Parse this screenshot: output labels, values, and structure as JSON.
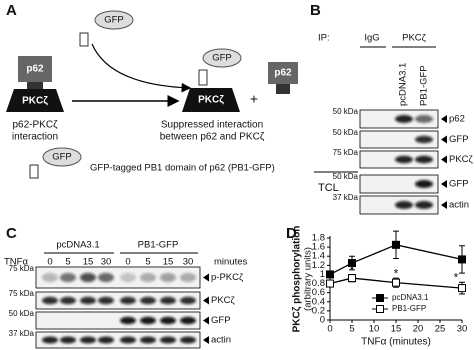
{
  "panel_a": {
    "label": "A",
    "gfp_top": "GFP",
    "p62_left": "p62",
    "pkc_left": "PKCζ",
    "caption_left": [
      "p62-PKCζ",
      "interaction"
    ],
    "gfp_right": "GFP",
    "pkc_right": "PKCζ",
    "plus": "+",
    "p62_right": "p62",
    "caption_right": [
      "Suppressed interaction",
      "between p62 and PKCζ"
    ],
    "legend_gfp": "GFP",
    "legend_text": "GFP-tagged PB1 domain of p62 (PB1-GFP)"
  },
  "panel_b": {
    "label": "B",
    "ip": "IP:",
    "igg": "IgG",
    "pkc": "PKCζ",
    "lanes": [
      "pcDNA3.1",
      "PB1-GFP"
    ],
    "markers": [
      "50 kDa",
      "50 kDa",
      "75 kDa",
      "50 kDa",
      "37 kDa"
    ],
    "blots": [
      "p62",
      "GFP",
      "PKCζ",
      "GFP",
      "actin"
    ],
    "tcl": "TCL"
  },
  "panel_c": {
    "label": "C",
    "groups": [
      "pcDNA3.1",
      "PB1-GFP"
    ],
    "tnf": "TNFα",
    "times": [
      "0",
      "5",
      "15",
      "30",
      "0",
      "5",
      "15",
      "30"
    ],
    "unit": "minutes",
    "markers": [
      "75 kDa",
      "75 kDa",
      "50 kDa",
      "37 kDa"
    ],
    "blots": [
      "p-PKCζ",
      "PKCζ",
      "GFP",
      "actin"
    ]
  },
  "chart_data": {
    "type": "line",
    "label": "D",
    "ylabel": "PKCζ phosphorylation",
    "ylabel_sub": "(arbitrary units)",
    "xlabel": "TNFα (minutes)",
    "x": [
      0,
      5,
      15,
      30
    ],
    "series": [
      {
        "name": "pcDNA3.1",
        "color": "#000000",
        "marker_fill": "#000000",
        "values": [
          1,
          1.25,
          1.65,
          1.33
        ],
        "errors": [
          0.04,
          0.15,
          0.3,
          0.3
        ]
      },
      {
        "name": "PB1-GFP",
        "color": "#000000",
        "marker_fill": "#ffffff",
        "values": [
          0.8,
          0.92,
          0.82,
          0.7
        ],
        "errors": [
          0.07,
          0.08,
          0.1,
          0.13
        ]
      }
    ],
    "annotations": [
      {
        "x": 5,
        "text": "*"
      },
      {
        "x": 15,
        "text": "*"
      },
      {
        "x": 30,
        "text": "*"
      }
    ],
    "xlim": [
      0,
      30
    ],
    "xticks": [
      0,
      5,
      10,
      15,
      20,
      25,
      30
    ],
    "ylim": [
      0,
      1.8
    ],
    "yticks": [
      0,
      0.2,
      0.4,
      0.6,
      0.8,
      1,
      1.2,
      1.4,
      1.6,
      1.8
    ],
    "grid": false
  }
}
